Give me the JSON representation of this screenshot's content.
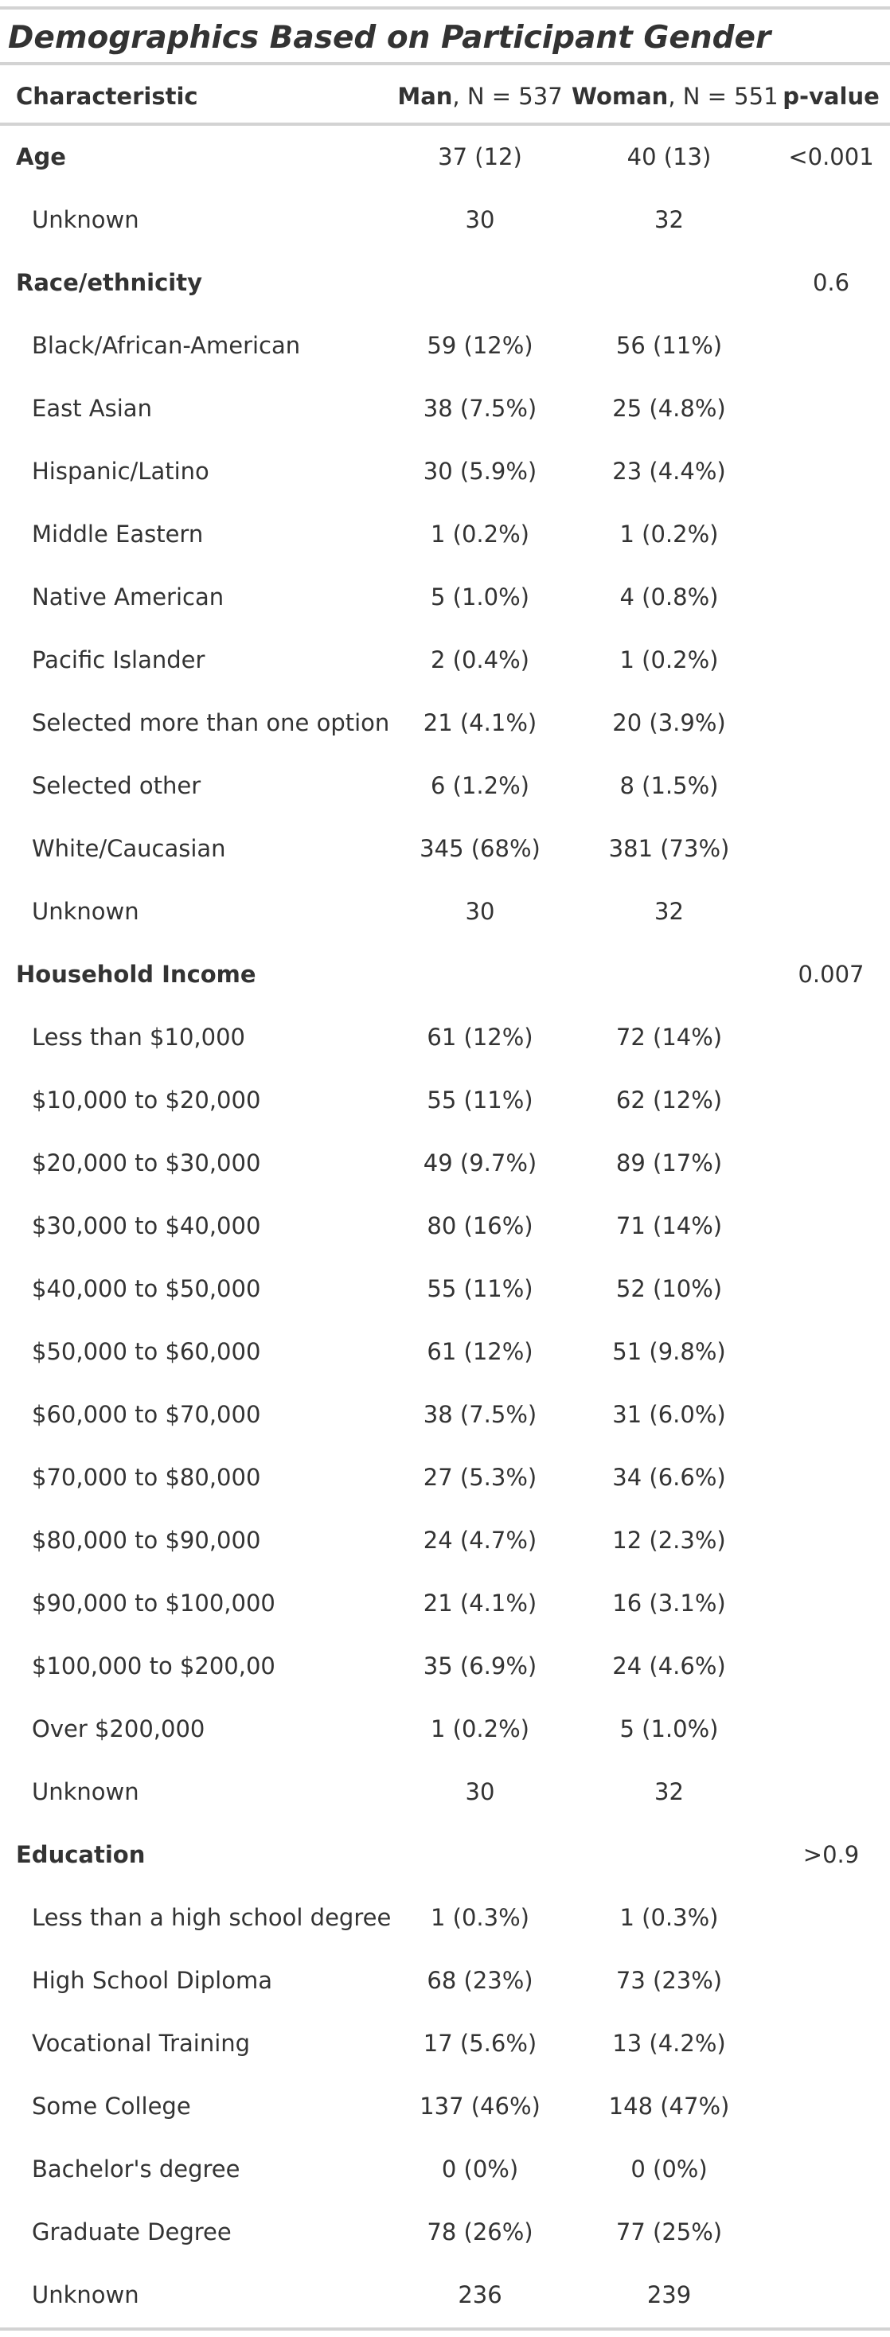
{
  "table": {
    "title": "Demographics Based on Participant Gender",
    "header": {
      "characteristic": "Characteristic",
      "man_bold": "Man",
      "man_n": ", N = 537",
      "woman_bold": "Woman",
      "woman_n": ", N = 551",
      "p_value": "p-value"
    },
    "rows": [
      {
        "label": "Age",
        "man": "37 (12)",
        "woman": "40 (13)",
        "p": "<0.001",
        "group": true
      },
      {
        "label": "Unknown",
        "man": "30",
        "woman": "32",
        "p": "",
        "group": false
      },
      {
        "label": "Race/ethnicity",
        "man": "",
        "woman": "",
        "p": "0.6",
        "group": true
      },
      {
        "label": "Black/African-American",
        "man": "59 (12%)",
        "woman": "56 (11%)",
        "p": "",
        "group": false
      },
      {
        "label": "East Asian",
        "man": "38 (7.5%)",
        "woman": "25 (4.8%)",
        "p": "",
        "group": false
      },
      {
        "label": "Hispanic/Latino",
        "man": "30 (5.9%)",
        "woman": "23 (4.4%)",
        "p": "",
        "group": false
      },
      {
        "label": "Middle Eastern",
        "man": "1 (0.2%)",
        "woman": "1 (0.2%)",
        "p": "",
        "group": false
      },
      {
        "label": "Native American",
        "man": "5 (1.0%)",
        "woman": "4 (0.8%)",
        "p": "",
        "group": false
      },
      {
        "label": "Pacific Islander",
        "man": "2 (0.4%)",
        "woman": "1 (0.2%)",
        "p": "",
        "group": false
      },
      {
        "label": "Selected more than one option",
        "man": "21 (4.1%)",
        "woman": "20 (3.9%)",
        "p": "",
        "group": false
      },
      {
        "label": "Selected other",
        "man": "6 (1.2%)",
        "woman": "8 (1.5%)",
        "p": "",
        "group": false
      },
      {
        "label": "White/Caucasian",
        "man": "345 (68%)",
        "woman": "381 (73%)",
        "p": "",
        "group": false
      },
      {
        "label": "Unknown",
        "man": "30",
        "woman": "32",
        "p": "",
        "group": false
      },
      {
        "label": "Household Income",
        "man": "",
        "woman": "",
        "p": "0.007",
        "group": true
      },
      {
        "label": "Less than $10,000",
        "man": "61 (12%)",
        "woman": "72 (14%)",
        "p": "",
        "group": false
      },
      {
        "label": "$10,000 to $20,000",
        "man": "55 (11%)",
        "woman": "62 (12%)",
        "p": "",
        "group": false
      },
      {
        "label": "$20,000 to $30,000",
        "man": "49 (9.7%)",
        "woman": "89 (17%)",
        "p": "",
        "group": false
      },
      {
        "label": "$30,000 to $40,000",
        "man": "80 (16%)",
        "woman": "71 (14%)",
        "p": "",
        "group": false
      },
      {
        "label": "$40,000 to $50,000",
        "man": "55 (11%)",
        "woman": "52 (10%)",
        "p": "",
        "group": false
      },
      {
        "label": "$50,000 to $60,000",
        "man": "61 (12%)",
        "woman": "51 (9.8%)",
        "p": "",
        "group": false
      },
      {
        "label": "$60,000 to $70,000",
        "man": "38 (7.5%)",
        "woman": "31 (6.0%)",
        "p": "",
        "group": false
      },
      {
        "label": "$70,000 to $80,000",
        "man": "27 (5.3%)",
        "woman": "34 (6.6%)",
        "p": "",
        "group": false
      },
      {
        "label": "$80,000 to $90,000",
        "man": "24 (4.7%)",
        "woman": "12 (2.3%)",
        "p": "",
        "group": false
      },
      {
        "label": "$90,000 to $100,000",
        "man": "21 (4.1%)",
        "woman": "16 (3.1%)",
        "p": "",
        "group": false
      },
      {
        "label": "$100,000 to $200,00",
        "man": "35 (6.9%)",
        "woman": "24 (4.6%)",
        "p": "",
        "group": false
      },
      {
        "label": "Over $200,000",
        "man": "1 (0.2%)",
        "woman": "5 (1.0%)",
        "p": "",
        "group": false
      },
      {
        "label": "Unknown",
        "man": "30",
        "woman": "32",
        "p": "",
        "group": false
      },
      {
        "label": "Education",
        "man": "",
        "woman": "",
        "p": ">0.9",
        "group": true
      },
      {
        "label": "Less than a high school degree",
        "man": "1 (0.3%)",
        "woman": "1 (0.3%)",
        "p": "",
        "group": false
      },
      {
        "label": "High School Diploma",
        "man": "68 (23%)",
        "woman": "73 (23%)",
        "p": "",
        "group": false
      },
      {
        "label": "Vocational Training",
        "man": "17 (5.6%)",
        "woman": "13 (4.2%)",
        "p": "",
        "group": false
      },
      {
        "label": "Some College",
        "man": "137 (46%)",
        "woman": "148 (47%)",
        "p": "",
        "group": false
      },
      {
        "label": "Bachelor's degree",
        "man": "0 (0%)",
        "woman": "0 (0%)",
        "p": "",
        "group": false
      },
      {
        "label": "Graduate Degree",
        "man": "78 (26%)",
        "woman": "77 (25%)",
        "p": "",
        "group": false
      },
      {
        "label": "Unknown",
        "man": "236",
        "woman": "239",
        "p": "",
        "group": false
      }
    ]
  }
}
